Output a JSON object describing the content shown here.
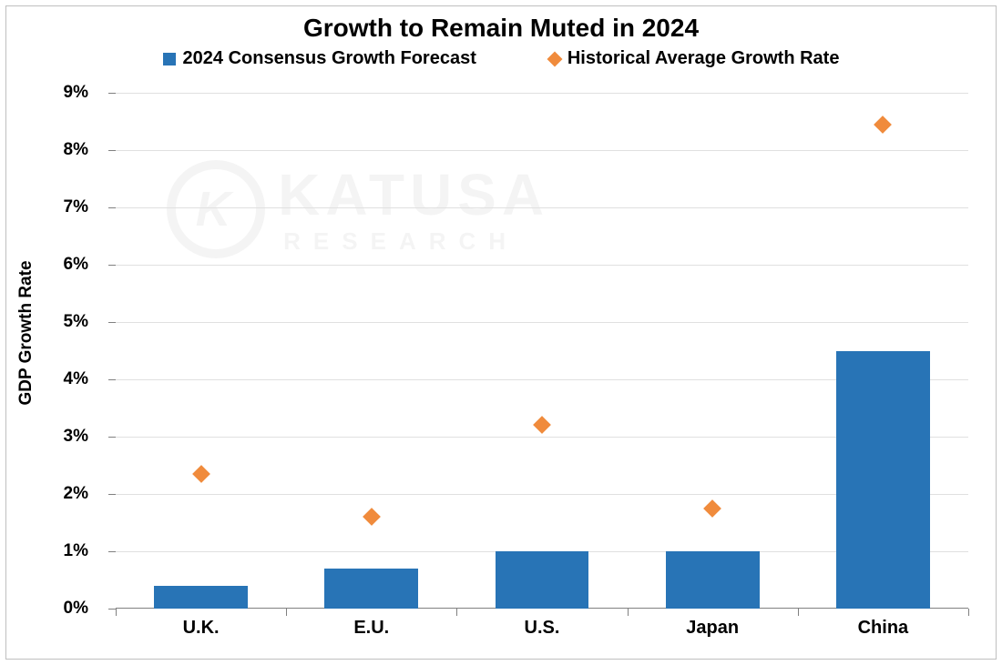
{
  "chart": {
    "type": "bar+scatter",
    "title": "Growth to Remain Muted in 2024",
    "title_fontsize": 28,
    "title_fontweight": "700",
    "title_color": "#000000",
    "y_axis_label": "GDP Growth Rate",
    "y_axis_label_fontsize": 19,
    "ylim": [
      0,
      9
    ],
    "ytick_step": 1,
    "y_ticks": [
      0,
      1,
      2,
      3,
      4,
      5,
      6,
      7,
      8,
      9
    ],
    "y_tick_labels": [
      "0%",
      "1%",
      "2%",
      "3%",
      "4%",
      "5%",
      "6%",
      "7%",
      "8%",
      "9%"
    ],
    "categories": [
      "U.K.",
      "E.U.",
      "U.S.",
      "Japan",
      "China"
    ],
    "series": [
      {
        "key": "forecast",
        "name": "2024 Consensus Growth Forecast",
        "style": "bar",
        "color": "#2874b6",
        "values": [
          0.4,
          0.7,
          1.0,
          1.0,
          4.5
        ],
        "bar_width_fraction": 0.55
      },
      {
        "key": "historical",
        "name": "Historical Average Growth Rate",
        "style": "diamond-marker",
        "color": "#f08b3c",
        "marker_size_px": 14,
        "values": [
          2.35,
          1.6,
          3.2,
          1.75,
          8.45
        ]
      }
    ],
    "gridline_color": "#e0e0e0",
    "axis_line_color": "#808080",
    "background_color": "#ffffff",
    "frame_border_color": "#bfbfbf",
    "label_fontsize": 20,
    "label_fontweight": "700",
    "legend": {
      "position": "top-center",
      "fontsize": 20,
      "fontweight": "700"
    },
    "watermark": {
      "main": "KATUSA",
      "sub": "RESEARCH",
      "glyph": "K",
      "opacity": 0.04
    }
  }
}
